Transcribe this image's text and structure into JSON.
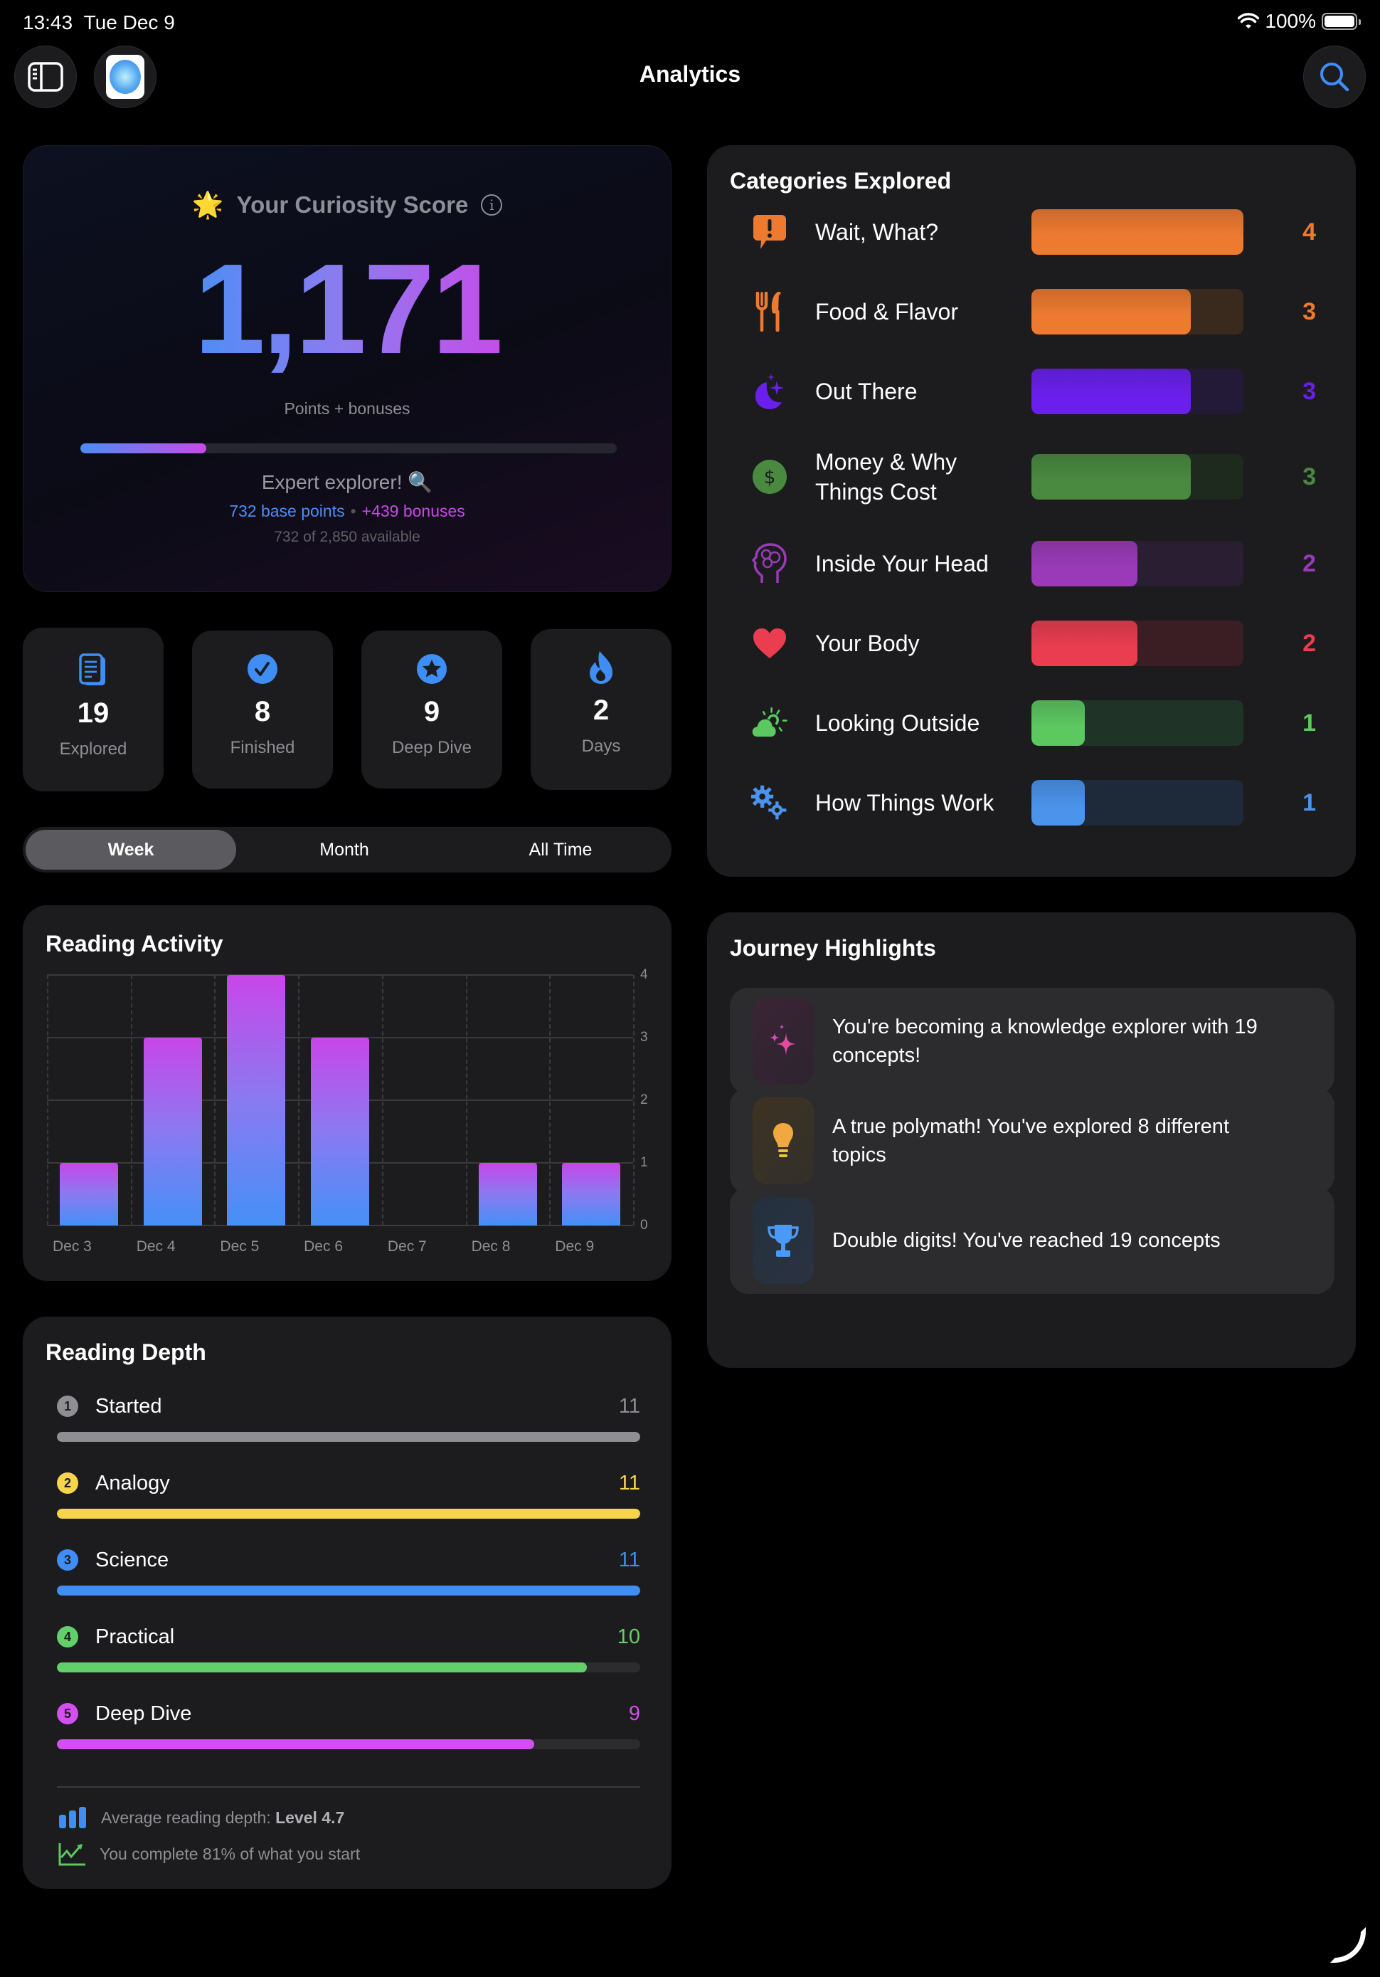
{
  "status_bar": {
    "time": "13:43",
    "date": "Tue Dec 9",
    "battery": "100%"
  },
  "nav": {
    "title": "Analytics"
  },
  "score": {
    "title": "Your Curiosity Score",
    "value": "1,171",
    "subtitle": "Points + bonuses",
    "progress_percent": 23.5,
    "level": "Expert explorer! 🔍",
    "base_points": "732 base points",
    "separator": "•",
    "bonuses": "+439 bonuses",
    "available": "732 of 2,850 available"
  },
  "stats": [
    {
      "value": "19",
      "label": "Explored",
      "icon": "document-icon"
    },
    {
      "value": "8",
      "label": "Finished",
      "icon": "checkmark-circle-icon"
    },
    {
      "value": "9",
      "label": "Deep Dive",
      "icon": "star-circle-icon"
    },
    {
      "value": "2",
      "label": "Days",
      "icon": "flame-icon"
    }
  ],
  "period": {
    "options": [
      "Week",
      "Month",
      "All Time"
    ],
    "selected": "Week"
  },
  "reading_activity": {
    "title": "Reading Activity"
  },
  "chart_data": {
    "type": "bar",
    "title": "Reading Activity",
    "categories": [
      "Dec 3",
      "Dec 4",
      "Dec 5",
      "Dec 6",
      "Dec 7",
      "Dec 8",
      "Dec 9"
    ],
    "values": [
      1,
      3,
      4,
      3,
      0,
      1,
      1
    ],
    "xlabel": "",
    "ylabel": "",
    "ylim": [
      0,
      4
    ],
    "yticks": [
      0,
      1,
      2,
      3,
      4
    ],
    "grid": true,
    "y_axis_position": "right",
    "bar_gradient": [
      "#4590f7",
      "#c846e8"
    ]
  },
  "reading_depth": {
    "title": "Reading Depth",
    "max": 11,
    "levels": [
      {
        "num": "1",
        "label": "Started",
        "count": "11",
        "value": 11,
        "color": "#8e8e93"
      },
      {
        "num": "2",
        "label": "Analogy",
        "count": "11",
        "value": 11,
        "color": "#f7d54a"
      },
      {
        "num": "3",
        "label": "Science",
        "count": "11",
        "value": 11,
        "color": "#3f8ef5"
      },
      {
        "num": "4",
        "label": "Practical",
        "count": "10",
        "value": 10,
        "color": "#62cf6a"
      },
      {
        "num": "5",
        "label": "Deep Dive",
        "count": "9",
        "value": 9,
        "color": "#d24ff0"
      }
    ],
    "avg_label": "Average reading depth: ",
    "avg_value": "Level 4.7",
    "completion": "You complete 81% of what you start"
  },
  "categories": {
    "title": "Categories Explored",
    "max": 4,
    "items": [
      {
        "label": "Wait, What?",
        "count": "4",
        "value": 4,
        "color": "#ee7a30",
        "track": "#3a2a1e",
        "icon": "exclamation-bubble-icon"
      },
      {
        "label": "Food & Flavor",
        "count": "3",
        "value": 3,
        "color": "#ee7a30",
        "track": "#3a2a1e",
        "icon": "fork-knife-icon"
      },
      {
        "label": "Out There",
        "count": "3",
        "value": 3,
        "color": "#6a1fee",
        "track": "#221a36",
        "icon": "moon-stars-icon"
      },
      {
        "label": "Money & Why Things Cost",
        "count": "3",
        "value": 3,
        "color": "#4a8a40",
        "track": "#1f2a1f",
        "icon": "dollar-circle-icon"
      },
      {
        "label": "Inside Your Head",
        "count": "2",
        "value": 2,
        "color": "#9a3ab8",
        "track": "#2a1e33",
        "icon": "brain-head-icon"
      },
      {
        "label": "Your Body",
        "count": "2",
        "value": 2,
        "color": "#ea3d50",
        "track": "#3a1e24",
        "icon": "heart-icon"
      },
      {
        "label": "Looking Outside",
        "count": "1",
        "value": 1,
        "color": "#5cc860",
        "track": "#1f3326",
        "icon": "cloud-sun-icon"
      },
      {
        "label": "How Things Work",
        "count": "1",
        "value": 1,
        "color": "#4a94ec",
        "track": "#1e2a3a",
        "icon": "gears-icon"
      }
    ]
  },
  "journey": {
    "title": "Journey Highlights",
    "items": [
      {
        "text": "You're becoming a knowledge explorer with 19 concepts!",
        "icon": "sparkles-icon"
      },
      {
        "text": "A true polymath! You've explored 8 different topics",
        "icon": "lightbulb-icon"
      },
      {
        "text": "Double digits! You've reached 19 concepts",
        "icon": "trophy-icon"
      }
    ]
  }
}
